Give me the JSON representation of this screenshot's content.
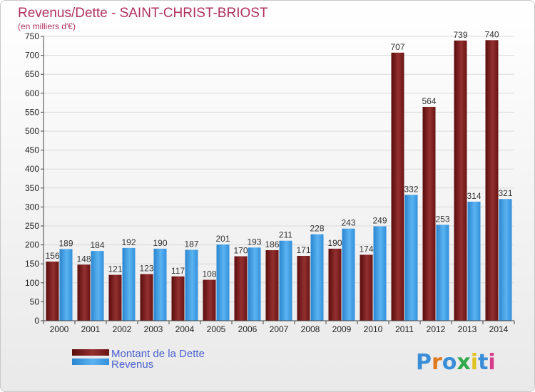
{
  "chart_data": {
    "type": "bar",
    "title": "Revenus/Dette - SAINT-CHRIST-BRIOST",
    "subtitle": "(en milliers d'€)",
    "categories": [
      "2000",
      "2001",
      "2002",
      "2003",
      "2004",
      "2005",
      "2006",
      "2007",
      "2008",
      "2009",
      "2010",
      "2011",
      "2012",
      "2013",
      "2014"
    ],
    "series": [
      {
        "name": "Montant de la Dette",
        "color": "#7a1a1a",
        "values": [
          156,
          148,
          121,
          123,
          117,
          108,
          170,
          186,
          171,
          190,
          174,
          707,
          564,
          739,
          740
        ]
      },
      {
        "name": "Revenus",
        "color": "#3a9ae0",
        "values": [
          189,
          184,
          192,
          190,
          187,
          201,
          193,
          211,
          228,
          243,
          249,
          332,
          253,
          314,
          321
        ]
      }
    ],
    "ylim": [
      0,
      750
    ],
    "ytick_step": 50,
    "grid": true,
    "legend": "bottom-left"
  },
  "logo": {
    "text": "Proxiti"
  }
}
